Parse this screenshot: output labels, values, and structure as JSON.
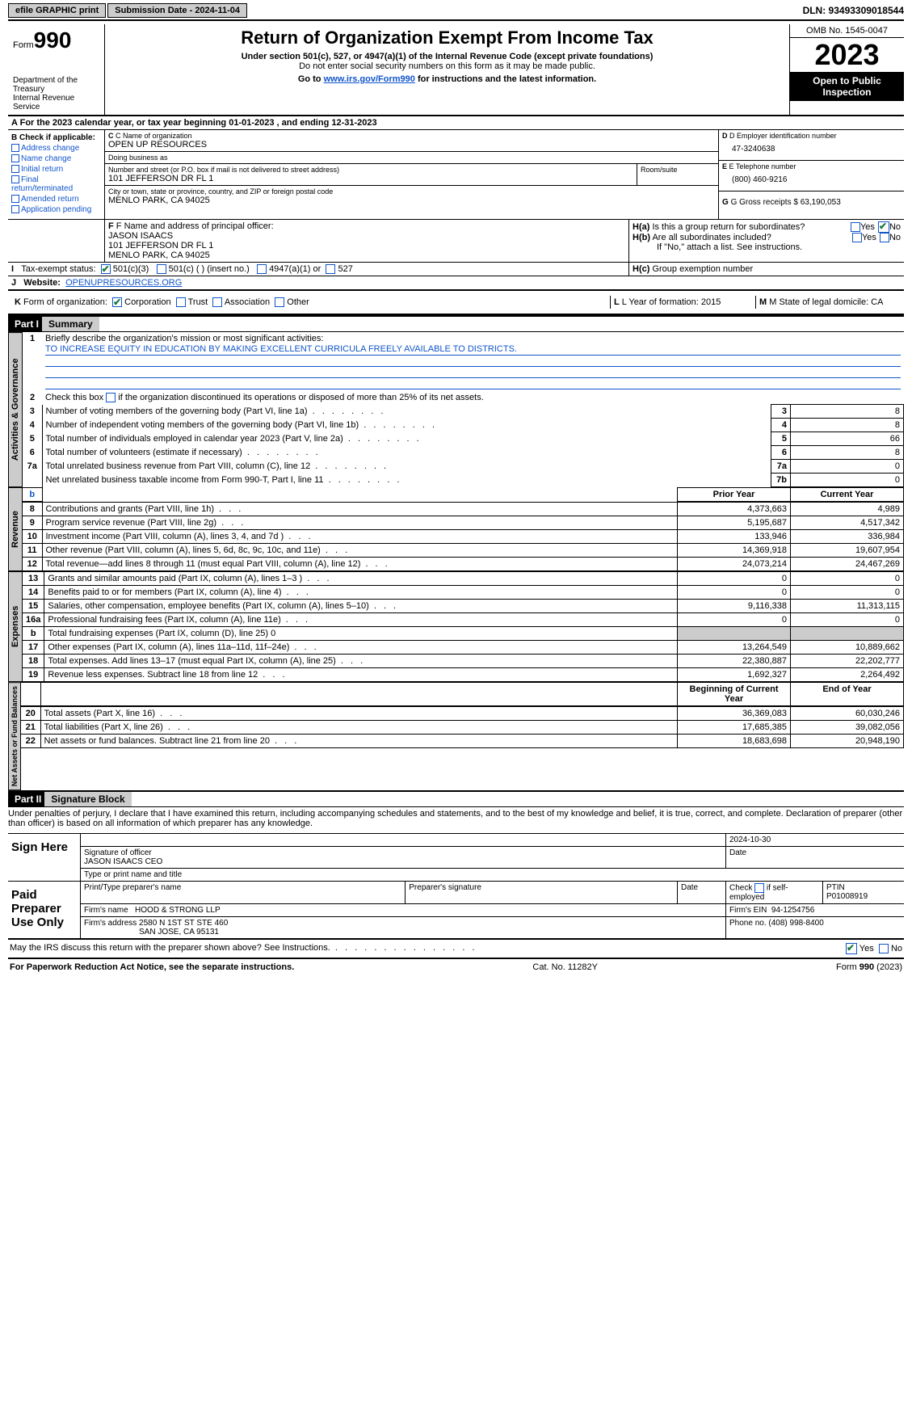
{
  "topbar": {
    "efile": "efile GRAPHIC print",
    "submission_label": "Submission Date - 2024-11-04",
    "dln_label": "DLN: 93493309018544"
  },
  "header": {
    "form_word": "Form",
    "form_num": "990",
    "dept": "Department of the Treasury\nInternal Revenue Service",
    "title": "Return of Organization Exempt From Income Tax",
    "sub": "Under section 501(c), 527, or 4947(a)(1) of the Internal Revenue Code (except private foundations)",
    "sub2": "Do not enter social security numbers on this form as it may be made public.",
    "sub3_pre": "Go to ",
    "sub3_link": "www.irs.gov/Form990",
    "sub3_post": " for instructions and the latest information.",
    "omb": "OMB No. 1545-0047",
    "year": "2023",
    "open_pub": "Open to Public Inspection"
  },
  "line_a": "For the 2023 calendar year, or tax year beginning 01-01-2023   , and ending 12-31-2023",
  "box_b": {
    "label": "B Check if applicable:",
    "items": [
      "Address change",
      "Name change",
      "Initial return",
      "Final return/terminated",
      "Amended return",
      "Application pending"
    ]
  },
  "box_c": {
    "name_lbl": "C Name of organization",
    "name": "OPEN UP RESOURCES",
    "dba_lbl": "Doing business as",
    "dba": "",
    "street_lbl": "Number and street (or P.O. box if mail is not delivered to street address)",
    "street": "101 JEFFERSON DR FL 1",
    "room_lbl": "Room/suite",
    "room": "",
    "city_lbl": "City or town, state or province, country, and ZIP or foreign postal code",
    "city": "MENLO PARK, CA  94025"
  },
  "box_d": {
    "ein_lbl": "D Employer identification number",
    "ein": "47-3240638",
    "phone_lbl": "E Telephone number",
    "phone": "(800) 460-9216",
    "gross_lbl": "G Gross receipts $ 63,190,053"
  },
  "box_f": {
    "lbl": "F  Name and address of principal officer:",
    "name": "JASON ISAACS",
    "addr1": "101 JEFFERSON DR FL 1",
    "addr2": "MENLO PARK, CA  94025"
  },
  "box_h": {
    "ha": "H(a)  Is this a group return for subordinates?",
    "hb": "H(b)  Are all subordinates included?",
    "hb_note": "If \"No,\" attach a list. See instructions.",
    "hc": "H(c)  Group exemption number",
    "yes": "Yes",
    "no": "No"
  },
  "row_i": {
    "lbl": "I    Tax-exempt status:",
    "o1": "501(c)(3)",
    "o2": "501(c) (  ) (insert no.)",
    "o3": "4947(a)(1) or",
    "o4": "527"
  },
  "row_j": {
    "lbl": "J   Website:",
    "val": "OPENUPRESOURCES.ORG"
  },
  "row_k": {
    "lbl": "K Form of organization:",
    "opts": [
      "Corporation",
      "Trust",
      "Association",
      "Other"
    ]
  },
  "row_l": {
    "lbl": "L Year of formation: 2015"
  },
  "row_m": {
    "lbl": "M State of legal domicile: CA"
  },
  "part1": {
    "num": "Part I",
    "title": "Summary"
  },
  "summary": {
    "line1_lbl": "Briefly describe the organization's mission or most significant activities:",
    "line1_val": "TO INCREASE EQUITY IN EDUCATION BY MAKING EXCELLENT CURRICULA FREELY AVAILABLE TO DISTRICTS.",
    "line2": "Check this box          if the organization discontinued its operations or disposed of more than 25% of its net assets.",
    "rows_gov": [
      {
        "n": "3",
        "t": "Number of voting members of the governing body (Part VI, line 1a)",
        "box": "3",
        "v": "8"
      },
      {
        "n": "4",
        "t": "Number of independent voting members of the governing body (Part VI, line 1b)",
        "box": "4",
        "v": "8"
      },
      {
        "n": "5",
        "t": "Total number of individuals employed in calendar year 2023 (Part V, line 2a)",
        "box": "5",
        "v": "66"
      },
      {
        "n": "6",
        "t": "Total number of volunteers (estimate if necessary)",
        "box": "6",
        "v": "8"
      },
      {
        "n": "7a",
        "t": "Total unrelated business revenue from Part VIII, column (C), line 12",
        "box": "7a",
        "v": "0"
      },
      {
        "n": "",
        "t": "Net unrelated business taxable income from Form 990-T, Part I, line 11",
        "box": "7b",
        "v": "0"
      }
    ],
    "col_hdrs": {
      "b": "b",
      "py": "Prior Year",
      "cy": "Current Year"
    },
    "rows_rev": [
      {
        "n": "8",
        "t": "Contributions and grants (Part VIII, line 1h)",
        "py": "4,373,663",
        "cy": "4,989"
      },
      {
        "n": "9",
        "t": "Program service revenue (Part VIII, line 2g)",
        "py": "5,195,687",
        "cy": "4,517,342"
      },
      {
        "n": "10",
        "t": "Investment income (Part VIII, column (A), lines 3, 4, and 7d )",
        "py": "133,946",
        "cy": "336,984"
      },
      {
        "n": "11",
        "t": "Other revenue (Part VIII, column (A), lines 5, 6d, 8c, 9c, 10c, and 11e)",
        "py": "14,369,918",
        "cy": "19,607,954"
      },
      {
        "n": "12",
        "t": "Total revenue—add lines 8 through 11 (must equal Part VIII, column (A), line 12)",
        "py": "24,073,214",
        "cy": "24,467,269"
      }
    ],
    "rows_exp": [
      {
        "n": "13",
        "t": "Grants and similar amounts paid (Part IX, column (A), lines 1–3 )",
        "py": "0",
        "cy": "0"
      },
      {
        "n": "14",
        "t": "Benefits paid to or for members (Part IX, column (A), line 4)",
        "py": "0",
        "cy": "0"
      },
      {
        "n": "15",
        "t": "Salaries, other compensation, employee benefits (Part IX, column (A), lines 5–10)",
        "py": "9,116,338",
        "cy": "11,313,115"
      },
      {
        "n": "16a",
        "t": "Professional fundraising fees (Part IX, column (A), line 11e)",
        "py": "0",
        "cy": "0"
      },
      {
        "n": "b",
        "t": "Total fundraising expenses (Part IX, column (D), line 25) 0",
        "py": "",
        "cy": "",
        "grey": true
      },
      {
        "n": "17",
        "t": "Other expenses (Part IX, column (A), lines 11a–11d, 11f–24e)",
        "py": "13,264,549",
        "cy": "10,889,662"
      },
      {
        "n": "18",
        "t": "Total expenses. Add lines 13–17 (must equal Part IX, column (A), line 25)",
        "py": "22,380,887",
        "cy": "22,202,777"
      },
      {
        "n": "19",
        "t": "Revenue less expenses. Subtract line 18 from line 12",
        "py": "1,692,327",
        "cy": "2,264,492"
      }
    ],
    "col_hdrs2": {
      "py": "Beginning of Current Year",
      "cy": "End of Year"
    },
    "rows_net": [
      {
        "n": "20",
        "t": "Total assets (Part X, line 16)",
        "py": "36,369,083",
        "cy": "60,030,246"
      },
      {
        "n": "21",
        "t": "Total liabilities (Part X, line 26)",
        "py": "17,685,385",
        "cy": "39,082,056"
      },
      {
        "n": "22",
        "t": "Net assets or fund balances. Subtract line 21 from line 20",
        "py": "18,683,698",
        "cy": "20,948,190"
      }
    ],
    "vtabs": {
      "gov": "Activities & Governance",
      "rev": "Revenue",
      "exp": "Expenses",
      "net": "Net Assets or Fund Balances"
    }
  },
  "part2": {
    "num": "Part II",
    "title": "Signature Block"
  },
  "sig": {
    "perjury": "Under penalties of perjury, I declare that I have examined this return, including accompanying schedules and statements, and to the best of my knowledge and belief, it is true, correct, and complete. Declaration of preparer (other than officer) is based on all information of which preparer has any knowledge.",
    "sign_here": "Sign Here",
    "sig_off": "Signature of officer",
    "sig_name": "JASON ISAACS CEO",
    "sig_type": "Type or print name and title",
    "date_lbl": "Date",
    "date_val": "2024-10-30",
    "paid_prep": "Paid Preparer Use Only",
    "prep_name_lbl": "Print/Type preparer's name",
    "prep_sig_lbl": "Preparer's signature",
    "prep_date_lbl": "Date",
    "check_self": "Check         if self-employed",
    "ptin_lbl": "PTIN",
    "ptin": "P01008919",
    "firm_name_lbl": "Firm's name",
    "firm_name": "HOOD & STRONG LLP",
    "firm_ein_lbl": "Firm's EIN",
    "firm_ein": "94-1254756",
    "firm_addr_lbl": "Firm's address",
    "firm_addr1": "2580 N 1ST ST STE 460",
    "firm_addr2": "SAN JOSE, CA  95131",
    "firm_phone_lbl": "Phone no.",
    "firm_phone": "(408) 998-8400",
    "discuss": "May the IRS discuss this return with the preparer shown above? See Instructions."
  },
  "footer": {
    "left": "For Paperwork Reduction Act Notice, see the separate instructions.",
    "mid": "Cat. No. 11282Y",
    "right_pre": "Form ",
    "right_bold": "990",
    "right_post": " (2023)"
  }
}
